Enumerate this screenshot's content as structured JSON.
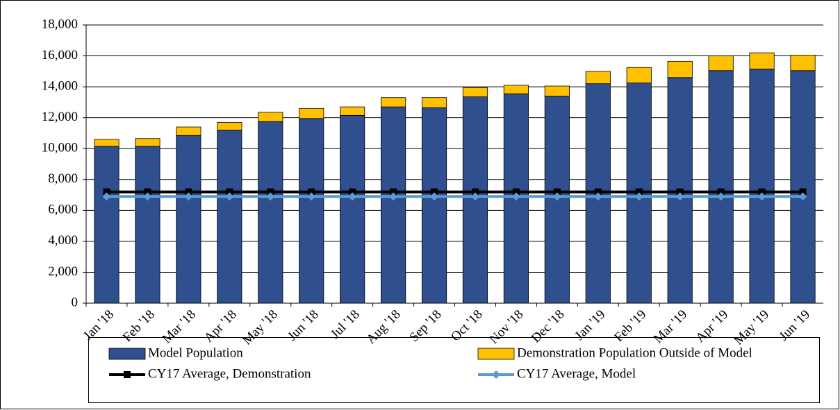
{
  "chart_data": {
    "type": "bar",
    "stacked": true,
    "categories": [
      "Jan '18",
      "Feb '18",
      "Mar '18",
      "Apr '18",
      "May '18",
      "Jun '18",
      "Jul '18",
      "Aug '18",
      "Sep '18",
      "Oct '18",
      "Nov '18",
      "Dec '18",
      "Jan '19",
      "Feb '19",
      "Mar '19",
      "Apr '19",
      "May '19",
      "Jun '19"
    ],
    "series": [
      {
        "name": "Model Population",
        "type": "bar",
        "color": "#2f4f8f",
        "values": [
          10150,
          10150,
          10850,
          11200,
          11750,
          11950,
          12150,
          12700,
          12650,
          13350,
          13550,
          13400,
          14200,
          14250,
          14600,
          15050,
          15150,
          15050
        ]
      },
      {
        "name": "Demonstration Population Outside of Model",
        "type": "bar",
        "color": "#ffc000",
        "values": [
          450,
          500,
          550,
          500,
          600,
          650,
          550,
          600,
          650,
          600,
          550,
          650,
          800,
          1000,
          1050,
          950,
          1050,
          1000
        ]
      },
      {
        "name": "CY17 Average, Demonstration",
        "type": "line",
        "marker": "square",
        "color": "#000000",
        "values": [
          7200,
          7200,
          7200,
          7200,
          7200,
          7200,
          7200,
          7200,
          7200,
          7200,
          7200,
          7200,
          7200,
          7200,
          7200,
          7200,
          7200,
          7200
        ]
      },
      {
        "name": "CY17 Average, Model",
        "type": "line",
        "marker": "diamond",
        "color": "#5b9bd5",
        "values": [
          6900,
          6900,
          6900,
          6900,
          6900,
          6900,
          6900,
          6900,
          6900,
          6900,
          6900,
          6900,
          6900,
          6900,
          6900,
          6900,
          6900,
          6900
        ]
      }
    ],
    "ylim": [
      0,
      18000
    ],
    "yticks": [
      0,
      {
        "value": 2000,
        "label": "2,000"
      },
      {
        "value": 4000,
        "label": "4,000"
      },
      {
        "value": 6000,
        "label": "6,000"
      },
      {
        "value": 8000,
        "label": "8,000"
      },
      {
        "value": 10000,
        "label": "10,000"
      },
      {
        "value": 12000,
        "label": "12,000"
      },
      {
        "value": 14000,
        "label": "14,000"
      },
      {
        "value": 16000,
        "label": "16,000"
      },
      {
        "value": 18000,
        "label": "18,000"
      }
    ],
    "grid": true,
    "legend": "bottom"
  }
}
